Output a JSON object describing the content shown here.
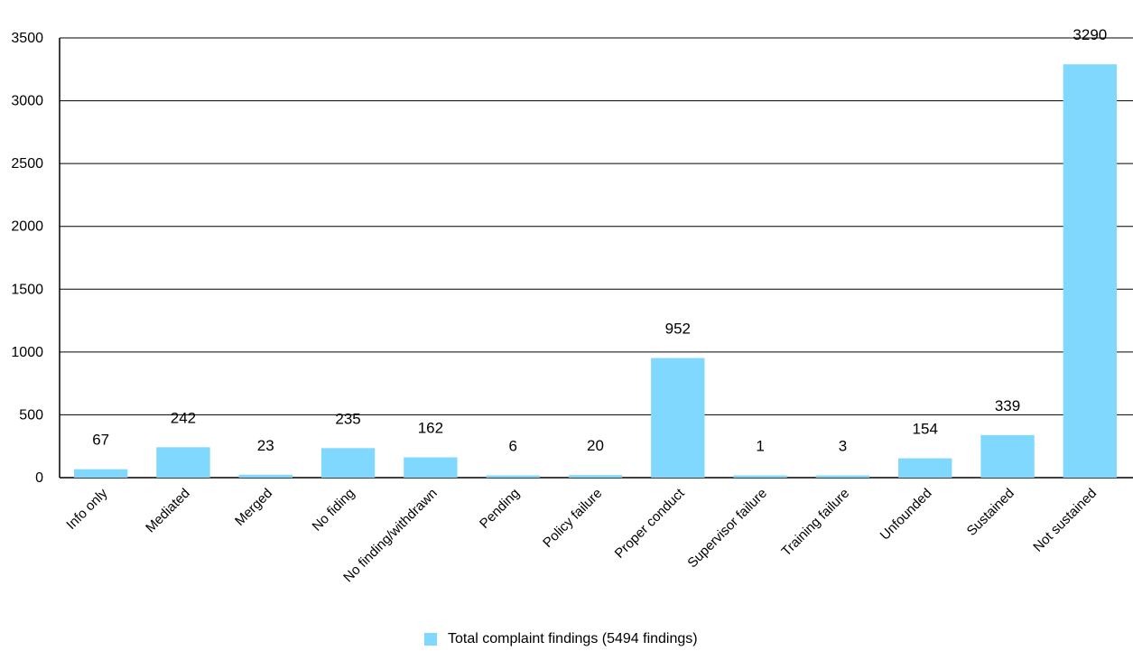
{
  "chart_data": {
    "type": "bar",
    "categories": [
      "Info only",
      "Mediated",
      "Merged",
      "No fiding",
      "No finding/withdrawn",
      "Pending",
      "Policy failure",
      "Proper conduct",
      "Supervisor failure",
      "Training failure",
      "Unfounded",
      "Sustained",
      "Not sustained"
    ],
    "values": [
      67,
      242,
      23,
      235,
      162,
      6,
      20,
      952,
      1,
      3,
      154,
      339,
      3290
    ],
    "data_labels": [
      "67",
      "242",
      "23",
      "235",
      "162",
      "6",
      "20",
      "952",
      "1",
      "3",
      "154",
      "339",
      "3290"
    ],
    "series": [
      {
        "name": "Total complaint findings (5494 findings)",
        "color": "#80d8ff"
      }
    ],
    "ylim": [
      0,
      3500
    ],
    "yticks": [
      0,
      500,
      1000,
      1500,
      2000,
      2500,
      3000,
      3500
    ],
    "grid": true,
    "legend_position": "bottom-center",
    "title": "",
    "xlabel": "",
    "ylabel": ""
  }
}
